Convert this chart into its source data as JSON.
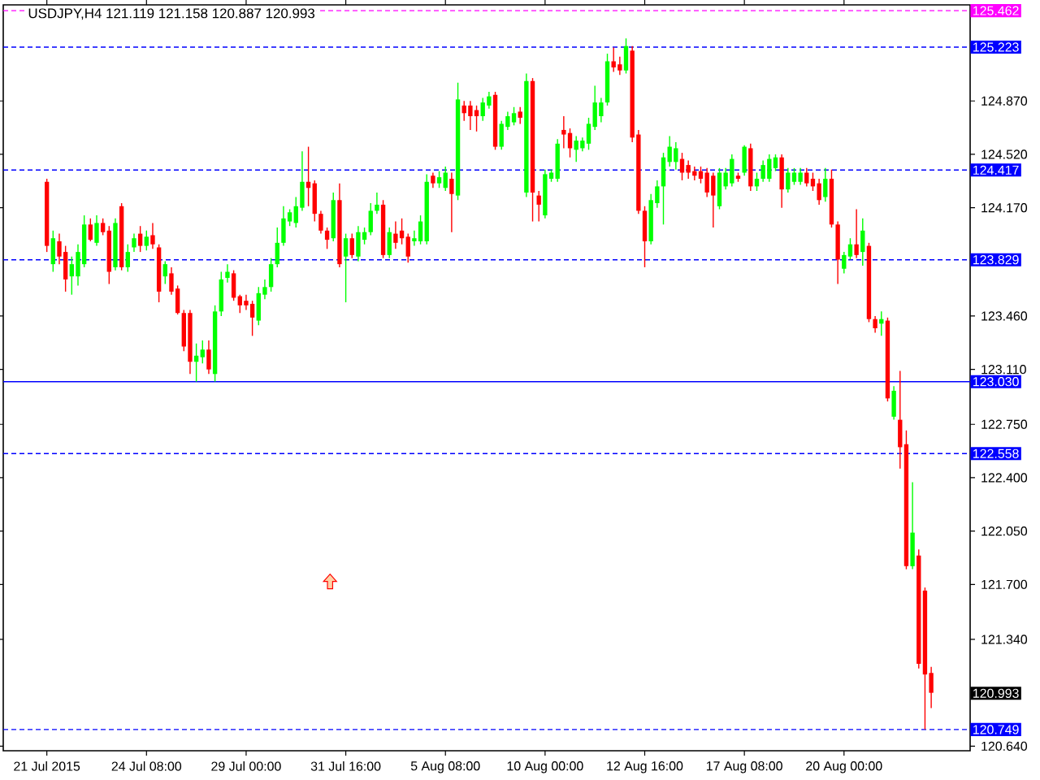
{
  "chart_data": {
    "type": "candlestick",
    "title": "USDJPY,H4 121.119 121.158 120.887 120.993",
    "categories": [
      "21 Jul 2015",
      null,
      null,
      null,
      null,
      null,
      null,
      null,
      null,
      null,
      null,
      null,
      null,
      null,
      null,
      null,
      "24 Jul 08:00",
      null,
      null,
      null,
      null,
      null,
      null,
      null,
      null,
      null,
      null,
      null,
      null,
      null,
      null,
      null,
      "29 Jul 00:00",
      null,
      null,
      null,
      null,
      null,
      null,
      null,
      null,
      null,
      null,
      null,
      null,
      null,
      null,
      null,
      "31 Jul 16:00",
      null,
      null,
      null,
      null,
      null,
      null,
      null,
      null,
      null,
      null,
      null,
      null,
      null,
      null,
      null,
      "5 Aug 08:00",
      null,
      null,
      null,
      null,
      null,
      null,
      null,
      null,
      null,
      null,
      null,
      null,
      null,
      null,
      null,
      "10 Aug 00:00",
      null,
      null,
      null,
      null,
      null,
      null,
      null,
      null,
      null,
      null,
      null,
      null,
      null,
      null,
      null,
      "12 Aug 16:00",
      null,
      null,
      null,
      null,
      null,
      null,
      null,
      null,
      null,
      null,
      null,
      null,
      null,
      null,
      null,
      "17 Aug 08:00",
      null,
      null,
      null,
      null,
      null,
      null,
      null,
      null,
      null,
      null,
      null,
      null,
      null,
      null,
      null,
      "20 Aug 00:00",
      null,
      null,
      null,
      null,
      null,
      null,
      null,
      null,
      null,
      null,
      null,
      null,
      null,
      null
    ],
    "ohlc": [
      [
        124.34,
        124.36,
        123.88,
        123.92
      ],
      [
        123.8,
        124.02,
        123.75,
        123.97
      ],
      [
        123.95,
        124.0,
        123.8,
        123.85
      ],
      [
        123.88,
        123.92,
        123.62,
        123.7
      ],
      [
        123.72,
        123.85,
        123.6,
        123.8
      ],
      [
        123.72,
        123.93,
        123.66,
        123.88
      ],
      [
        123.8,
        124.12,
        123.78,
        124.06
      ],
      [
        124.06,
        124.1,
        123.95,
        123.96
      ],
      [
        123.94,
        124.12,
        123.92,
        124.07
      ],
      [
        124.07,
        124.1,
        123.99,
        124.01
      ],
      [
        124.02,
        124.05,
        123.67,
        123.75
      ],
      [
        123.78,
        124.1,
        123.76,
        124.07
      ],
      [
        124.18,
        124.2,
        123.76,
        123.78
      ],
      [
        123.78,
        123.93,
        123.75,
        123.88
      ],
      [
        123.91,
        124.0,
        123.88,
        123.97
      ],
      [
        124.0,
        124.05,
        123.88,
        123.92
      ],
      [
        123.92,
        124.02,
        123.89,
        123.98
      ],
      [
        123.99,
        124.07,
        123.9,
        123.93
      ],
      [
        123.91,
        123.93,
        123.55,
        123.62
      ],
      [
        123.72,
        123.82,
        123.67,
        123.8
      ],
      [
        123.74,
        123.78,
        123.6,
        123.62
      ],
      [
        123.64,
        123.66,
        123.47,
        123.48
      ],
      [
        123.48,
        123.5,
        123.23,
        123.26
      ],
      [
        123.48,
        123.5,
        123.08,
        123.16
      ],
      [
        123.16,
        123.28,
        123.03,
        123.2
      ],
      [
        123.19,
        123.3,
        123.15,
        123.24
      ],
      [
        123.24,
        123.3,
        123.08,
        123.11
      ],
      [
        123.08,
        123.53,
        123.03,
        123.49
      ],
      [
        123.49,
        123.75,
        123.46,
        123.7
      ],
      [
        123.71,
        123.8,
        123.68,
        123.75
      ],
      [
        123.74,
        123.76,
        123.56,
        123.58
      ],
      [
        123.59,
        123.6,
        123.48,
        123.53
      ],
      [
        123.56,
        123.6,
        123.5,
        123.53
      ],
      [
        123.54,
        123.56,
        123.33,
        123.45
      ],
      [
        123.43,
        123.65,
        123.4,
        123.61
      ],
      [
        123.6,
        123.7,
        123.57,
        123.65
      ],
      [
        123.65,
        123.84,
        123.62,
        123.8
      ],
      [
        123.8,
        124.04,
        123.78,
        123.94
      ],
      [
        123.94,
        124.18,
        123.92,
        124.1
      ],
      [
        124.08,
        124.16,
        124.05,
        124.14
      ],
      [
        124.07,
        124.24,
        124.04,
        124.18
      ],
      [
        124.17,
        124.54,
        124.15,
        124.34
      ],
      [
        124.34,
        124.57,
        124.18,
        124.3
      ],
      [
        124.33,
        124.35,
        124.08,
        124.13
      ],
      [
        124.13,
        124.15,
        124.0,
        124.02
      ],
      [
        124.02,
        124.04,
        123.9,
        123.96
      ],
      [
        123.97,
        124.27,
        123.95,
        124.22
      ],
      [
        124.22,
        124.33,
        123.78,
        123.8
      ],
      [
        123.85,
        124.0,
        123.55,
        123.97
      ],
      [
        123.97,
        124.0,
        123.84,
        123.86
      ],
      [
        123.85,
        124.05,
        123.82,
        124.01
      ],
      [
        123.96,
        124.04,
        123.93,
        124.01
      ],
      [
        124.01,
        124.2,
        123.99,
        124.15
      ],
      [
        124.15,
        124.27,
        124.13,
        124.19
      ],
      [
        124.19,
        124.22,
        123.84,
        123.86
      ],
      [
        123.86,
        124.04,
        123.84,
        124.01
      ],
      [
        124.0,
        124.08,
        123.9,
        123.94
      ],
      [
        124.02,
        124.1,
        123.93,
        123.97
      ],
      [
        123.98,
        124.0,
        123.81,
        123.85
      ],
      [
        123.95,
        124.02,
        123.92,
        123.97
      ],
      [
        123.95,
        124.12,
        123.93,
        124.08
      ],
      [
        123.95,
        124.39,
        123.93,
        124.34
      ],
      [
        124.38,
        124.4,
        124.3,
        124.33
      ],
      [
        124.33,
        124.41,
        124.3,
        124.37
      ],
      [
        124.3,
        124.44,
        124.28,
        124.4
      ],
      [
        124.36,
        124.4,
        124.01,
        124.26
      ],
      [
        124.25,
        124.99,
        124.22,
        124.88
      ],
      [
        124.84,
        124.87,
        124.74,
        124.79
      ],
      [
        124.84,
        124.87,
        124.68,
        124.77
      ],
      [
        124.81,
        124.84,
        124.67,
        124.77
      ],
      [
        124.77,
        124.89,
        124.74,
        124.86
      ],
      [
        124.84,
        124.93,
        124.82,
        124.9
      ],
      [
        124.91,
        124.93,
        124.55,
        124.57
      ],
      [
        124.57,
        124.74,
        124.55,
        124.72
      ],
      [
        124.7,
        124.8,
        124.68,
        124.77
      ],
      [
        124.73,
        124.83,
        124.71,
        124.79
      ],
      [
        124.8,
        124.83,
        124.72,
        124.76
      ],
      [
        124.27,
        125.05,
        124.24,
        125.0
      ],
      [
        125.0,
        125.02,
        124.08,
        124.27
      ],
      [
        124.25,
        124.28,
        124.08,
        124.19
      ],
      [
        124.12,
        124.42,
        124.1,
        124.39
      ],
      [
        124.36,
        124.42,
        124.34,
        124.4
      ],
      [
        124.36,
        124.62,
        124.34,
        124.59
      ],
      [
        124.68,
        124.77,
        124.56,
        124.65
      ],
      [
        124.66,
        124.69,
        124.5,
        124.56
      ],
      [
        124.55,
        124.64,
        124.47,
        124.61
      ],
      [
        124.56,
        124.63,
        124.54,
        124.61
      ],
      [
        124.59,
        124.76,
        124.55,
        124.72
      ],
      [
        124.7,
        124.97,
        124.68,
        124.86
      ],
      [
        124.77,
        124.89,
        124.73,
        124.86
      ],
      [
        124.86,
        125.18,
        124.84,
        125.13
      ],
      [
        125.13,
        125.22,
        125.06,
        125.09
      ],
      [
        125.11,
        125.16,
        125.04,
        125.07
      ],
      [
        125.07,
        125.28,
        125.05,
        125.23
      ],
      [
        125.2,
        125.23,
        124.6,
        124.63
      ],
      [
        124.65,
        124.68,
        124.13,
        124.15
      ],
      [
        124.15,
        124.18,
        123.78,
        123.95
      ],
      [
        123.95,
        124.26,
        123.93,
        124.22
      ],
      [
        124.2,
        124.35,
        124.17,
        124.31
      ],
      [
        124.31,
        124.53,
        124.06,
        124.5
      ],
      [
        124.47,
        124.64,
        124.44,
        124.57
      ],
      [
        124.47,
        124.6,
        124.42,
        124.56
      ],
      [
        124.49,
        124.53,
        124.35,
        124.4
      ],
      [
        124.45,
        124.48,
        124.36,
        124.4
      ],
      [
        124.41,
        124.44,
        124.35,
        124.38
      ],
      [
        124.41,
        124.44,
        124.33,
        124.36
      ],
      [
        124.4,
        124.43,
        124.24,
        124.27
      ],
      [
        124.38,
        124.4,
        124.04,
        124.25
      ],
      [
        124.18,
        124.43,
        124.16,
        124.4
      ],
      [
        124.31,
        124.43,
        124.29,
        124.4
      ],
      [
        124.33,
        124.52,
        124.31,
        124.49
      ],
      [
        124.38,
        124.4,
        124.34,
        124.36
      ],
      [
        124.4,
        124.58,
        124.38,
        124.57
      ],
      [
        124.56,
        124.59,
        124.28,
        124.31
      ],
      [
        124.31,
        124.4,
        124.28,
        124.36
      ],
      [
        124.36,
        124.48,
        124.34,
        124.45
      ],
      [
        124.36,
        124.52,
        124.34,
        124.49
      ],
      [
        124.43,
        124.52,
        124.41,
        124.5
      ],
      [
        124.5,
        124.52,
        124.17,
        124.29
      ],
      [
        124.29,
        124.43,
        124.27,
        124.4
      ],
      [
        124.34,
        124.43,
        124.32,
        124.4
      ],
      [
        124.34,
        124.43,
        124.32,
        124.4
      ],
      [
        124.4,
        124.43,
        124.31,
        124.33
      ],
      [
        124.36,
        124.4,
        124.28,
        124.31
      ],
      [
        124.33,
        124.36,
        124.19,
        124.22
      ],
      [
        124.24,
        124.43,
        124.21,
        124.36
      ],
      [
        124.36,
        124.42,
        124.04,
        124.06
      ],
      [
        124.06,
        124.08,
        123.67,
        123.83
      ],
      [
        123.77,
        123.88,
        123.74,
        123.86
      ],
      [
        123.85,
        123.97,
        123.83,
        123.93
      ],
      [
        123.93,
        124.16,
        123.84,
        123.86
      ],
      [
        123.88,
        124.1,
        123.79,
        124.02
      ],
      [
        123.92,
        123.94,
        123.42,
        123.44
      ],
      [
        123.44,
        123.46,
        123.35,
        123.38
      ],
      [
        123.41,
        123.49,
        123.33,
        123.44
      ],
      [
        123.43,
        123.45,
        122.9,
        122.92
      ],
      [
        122.8,
        123.0,
        122.78,
        122.97
      ],
      [
        122.78,
        123.1,
        122.46,
        122.6
      ],
      [
        122.62,
        122.71,
        121.8,
        121.82
      ],
      [
        121.82,
        122.37,
        121.8,
        122.04
      ],
      [
        121.89,
        121.93,
        121.15,
        121.18
      ],
      [
        121.66,
        121.68,
        120.75,
        121.11
      ],
      [
        121.12,
        121.16,
        120.89,
        120.99
      ]
    ],
    "colors": [
      "#ff0000",
      "#00ff00",
      "#ff0000",
      "#ff0000",
      "#00ff00",
      "#00ff00",
      "#00ff00",
      "#ff0000",
      "#00ff00",
      "#ff0000",
      "#ff0000",
      "#00ff00",
      "#ff0000",
      "#00ff00",
      "#00ff00",
      "#ff0000",
      "#00ff00",
      "#ff0000",
      "#ff0000",
      "#00ff00",
      "#ff0000",
      "#ff0000",
      "#ff0000",
      "#ff0000",
      "#00ff00",
      "#00ff00",
      "#ff0000",
      "#00ff00",
      "#00ff00",
      "#00ff00",
      "#ff0000",
      "#ff0000",
      "#ff0000",
      "#ff0000",
      "#00ff00",
      "#00ff00",
      "#00ff00",
      "#00ff00",
      "#00ff00",
      "#00ff00",
      "#00ff00",
      "#00ff00",
      "#ff0000",
      "#ff0000",
      "#ff0000",
      "#ff0000",
      "#00ff00",
      "#ff0000",
      "#00ff00",
      "#ff0000",
      "#00ff00",
      "#00ff00",
      "#00ff00",
      "#00ff00",
      "#ff0000",
      "#00ff00",
      "#ff0000",
      "#ff0000",
      "#ff0000",
      "#00ff00",
      "#00ff00",
      "#00ff00",
      "#ff0000",
      "#00ff00",
      "#00ff00",
      "#ff0000",
      "#00ff00",
      "#ff0000",
      "#ff0000",
      "#ff0000",
      "#00ff00",
      "#00ff00",
      "#ff0000",
      "#00ff00",
      "#00ff00",
      "#00ff00",
      "#ff0000",
      "#00ff00",
      "#ff0000",
      "#ff0000",
      "#00ff00",
      "#00ff00",
      "#00ff00",
      "#ff0000",
      "#ff0000",
      "#00ff00",
      "#00ff00",
      "#00ff00",
      "#00ff00",
      "#00ff00",
      "#00ff00",
      "#ff0000",
      "#ff0000",
      "#00ff00",
      "#ff0000",
      "#ff0000",
      "#ff0000",
      "#00ff00",
      "#00ff00",
      "#00ff00",
      "#00ff00",
      "#00ff00",
      "#ff0000",
      "#ff0000",
      "#ff0000",
      "#ff0000",
      "#ff0000",
      "#ff0000",
      "#00ff00",
      "#00ff00",
      "#00ff00",
      "#ff0000",
      "#00ff00",
      "#ff0000",
      "#00ff00",
      "#00ff00",
      "#00ff00",
      "#00ff00",
      "#ff0000",
      "#00ff00",
      "#00ff00",
      "#00ff00",
      "#ff0000",
      "#ff0000",
      "#ff0000",
      "#00ff00",
      "#ff0000",
      "#ff0000",
      "#00ff00",
      "#00ff00",
      "#ff0000",
      "#00ff00",
      "#ff0000",
      "#ff0000",
      "#00ff00",
      "#ff0000",
      "#00ff00",
      "#ff0000",
      "#ff0000",
      "#00ff00",
      "#ff0000",
      "#ff0000",
      "#ff0000"
    ],
    "ylim": [
      120.61,
      125.5
    ],
    "yticks": [
      {
        "value": 120.64,
        "label": "120.640"
      },
      {
        "value": 121.34,
        "label": "121.340"
      },
      {
        "value": 121.7,
        "label": "121.700"
      },
      {
        "value": 122.05,
        "label": "122.050"
      },
      {
        "value": 122.4,
        "label": "122.400"
      },
      {
        "value": 122.75,
        "label": "122.750"
      },
      {
        "value": 123.11,
        "label": "123.110"
      },
      {
        "value": 123.46,
        "label": "123.460"
      },
      {
        "value": 124.17,
        "label": "124.170"
      },
      {
        "value": 124.52,
        "label": "124.520"
      },
      {
        "value": 124.87,
        "label": "124.870"
      }
    ],
    "ref_lines": [
      {
        "axis": "y",
        "value": 125.462,
        "label": "125.462",
        "color": "#ff00ff",
        "line_style": "dashed"
      },
      {
        "axis": "y",
        "value": 125.223,
        "label": "125.223",
        "color": "#0000ff",
        "line_style": "dashed"
      },
      {
        "axis": "y",
        "value": 124.417,
        "label": "124.417",
        "color": "#0000ff",
        "line_style": "dashed"
      },
      {
        "axis": "y",
        "value": 123.829,
        "label": "123.829",
        "color": "#0000ff",
        "line_style": "dashed"
      },
      {
        "axis": "y",
        "value": 123.03,
        "label": "123.030",
        "color": "#0000ff",
        "line_style": "solid"
      },
      {
        "axis": "y",
        "value": 122.558,
        "label": "122.558",
        "color": "#0000ff",
        "line_style": "dashed"
      },
      {
        "axis": "y",
        "value": 120.749,
        "label": "120.749",
        "color": "#0000ff",
        "line_style": "dashed"
      }
    ],
    "annotations": [
      "120.993"
    ]
  }
}
